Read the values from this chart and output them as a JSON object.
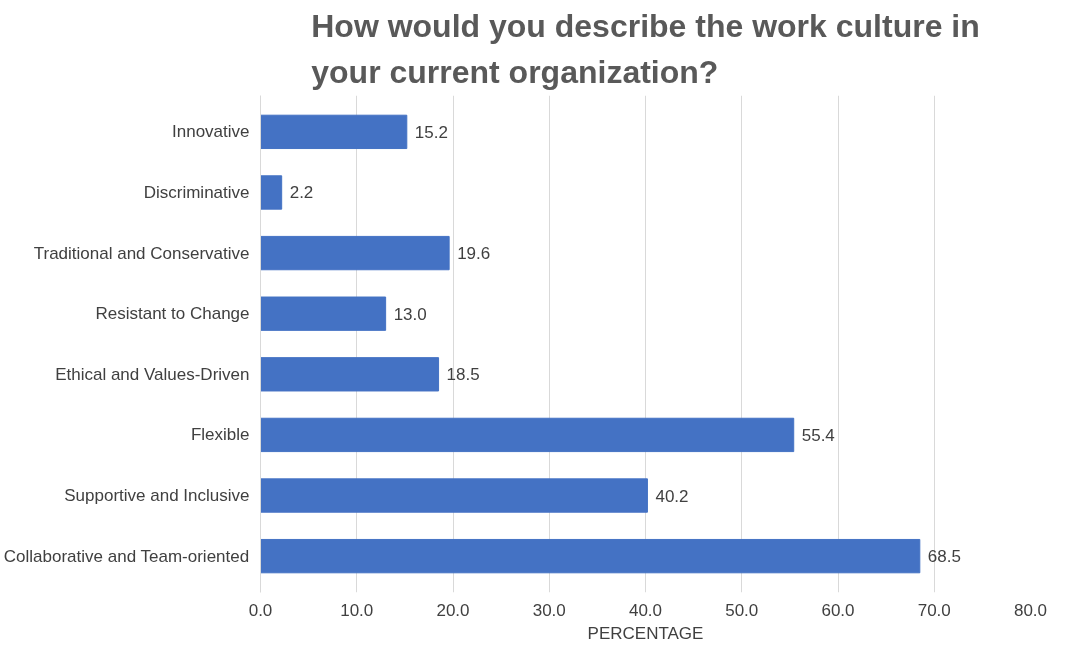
{
  "chart_data": {
    "type": "bar",
    "orientation": "horizontal",
    "title": "How would you describe the work culture in your current organization?",
    "xlabel": "PERCENTAGE",
    "categories": [
      "Innovative",
      "Discriminative",
      "Traditional and Conservative",
      "Resistant to Change",
      "Ethical and Values-Driven",
      "Flexible",
      "Supportive and Inclusive",
      "Collaborative and Team-oriented"
    ],
    "values": [
      15.2,
      2.2,
      19.6,
      13.0,
      18.5,
      55.4,
      40.2,
      68.5
    ],
    "value_labels": [
      "15.2",
      "2.2",
      "19.6",
      "13.0",
      "18.5",
      "55.4",
      "40.2",
      "68.5"
    ],
    "color": "#4472c4",
    "xlim": [
      0,
      80
    ],
    "xticks": [
      {
        "value": 0,
        "label": "0.0"
      },
      {
        "value": 10,
        "label": "10.0"
      },
      {
        "value": 20,
        "label": "20.0"
      },
      {
        "value": 30,
        "label": "30.0"
      },
      {
        "value": 40,
        "label": "40.0"
      },
      {
        "value": 50,
        "label": "50.0"
      },
      {
        "value": 60,
        "label": "60.0"
      },
      {
        "value": 70,
        "label": "70.0"
      },
      {
        "value": 80,
        "label": "80.0"
      }
    ],
    "grid": "x"
  }
}
